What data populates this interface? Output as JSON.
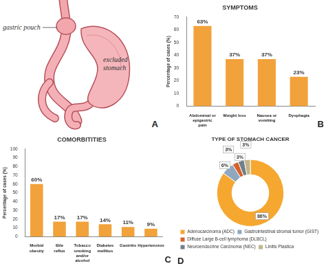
{
  "diagram": {
    "annotations": [
      "A"
    ],
    "labels": [
      "gastric pouch",
      "excluded stomach"
    ]
  },
  "chart_data": [
    {
      "type": "bar",
      "title": "SYMPTOMS",
      "annotations": [
        "B"
      ],
      "ylabel": "Percentage of cases (%)",
      "categories": [
        "Abdominal or epigastric pain",
        "Weight loss",
        "Nausea or vomiting",
        "Dysphagia"
      ],
      "values": [
        63,
        37,
        37,
        23
      ],
      "value_labels": [
        "63%",
        "37%",
        "37%",
        "23%"
      ],
      "color": "#f2a23a",
      "ylim": [
        0,
        70
      ],
      "yticks": [
        0,
        10,
        20,
        30,
        40,
        50,
        60,
        70
      ],
      "grid": false,
      "data_labels": true
    },
    {
      "type": "bar",
      "title": "COMORBITITIES",
      "annotations": [
        "C"
      ],
      "ylabel": "Percentage of cases (%)",
      "categories": [
        "Morbid obesity",
        "Bile reflux",
        "Tobacco smoking and/or alcohol",
        "Diabetes mellitus",
        "Gastritis",
        "Hypertension"
      ],
      "values": [
        60,
        17,
        17,
        14,
        11,
        9
      ],
      "value_labels": [
        "60%",
        "17%",
        "17%",
        "14%",
        "11%",
        "9%"
      ],
      "color": "#f2a23a",
      "ylim": [
        0,
        100
      ],
      "yticks": [
        0,
        10,
        20,
        30,
        40,
        50,
        60,
        70,
        80,
        90,
        100
      ],
      "grid": false,
      "data_labels": true
    },
    {
      "type": "doughnut",
      "title": "TYPE OF STOMACH CANCER",
      "annotations": [
        "D"
      ],
      "categories": [
        "Adenocarcinoma (ADC)",
        "Gastrointestinal stromal tumor (GIST)",
        "Diffuse Large B-cell lymphoma (DLBCL)",
        "Neuroendocrine Carcinoma (NEC)",
        "Linitis Plastica"
      ],
      "values": [
        86,
        6,
        3,
        3,
        3
      ],
      "value_labels": [
        "86%",
        "6%",
        "3%",
        "3%",
        "3%"
      ],
      "colors": [
        "#f5a730",
        "#8fa8bf",
        "#d8622b",
        "#6f7f8c",
        "#c2b48a"
      ],
      "legend": "bottom",
      "data_labels": true
    }
  ]
}
